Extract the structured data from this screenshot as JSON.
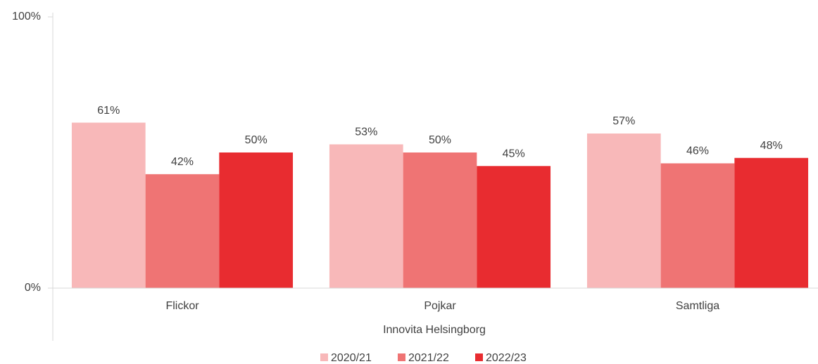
{
  "chart_data": {
    "type": "bar",
    "x_label": "Innovita Helsingborg",
    "categories": [
      "Flickor",
      "Pojkar",
      "Samtliga"
    ],
    "series": [
      {
        "name": "2020/21",
        "color": "#f8b8b9",
        "values": [
          61,
          53,
          57
        ],
        "value_labels": [
          "61%",
          "53%",
          "57%"
        ]
      },
      {
        "name": "2021/22",
        "color": "#ef7474",
        "values": [
          42,
          50,
          46
        ],
        "value_labels": [
          "42%",
          "50%",
          "46%"
        ]
      },
      {
        "name": "2022/23",
        "color": "#e82c30",
        "values": [
          50,
          45,
          48
        ],
        "value_labels": [
          "50%",
          "45%",
          "48%"
        ]
      }
    ],
    "ylim": [
      0,
      100
    ],
    "yticks": [
      {
        "value": 0,
        "label": "0%"
      },
      {
        "value": 100,
        "label": "100%"
      }
    ],
    "legend": "bottom"
  }
}
